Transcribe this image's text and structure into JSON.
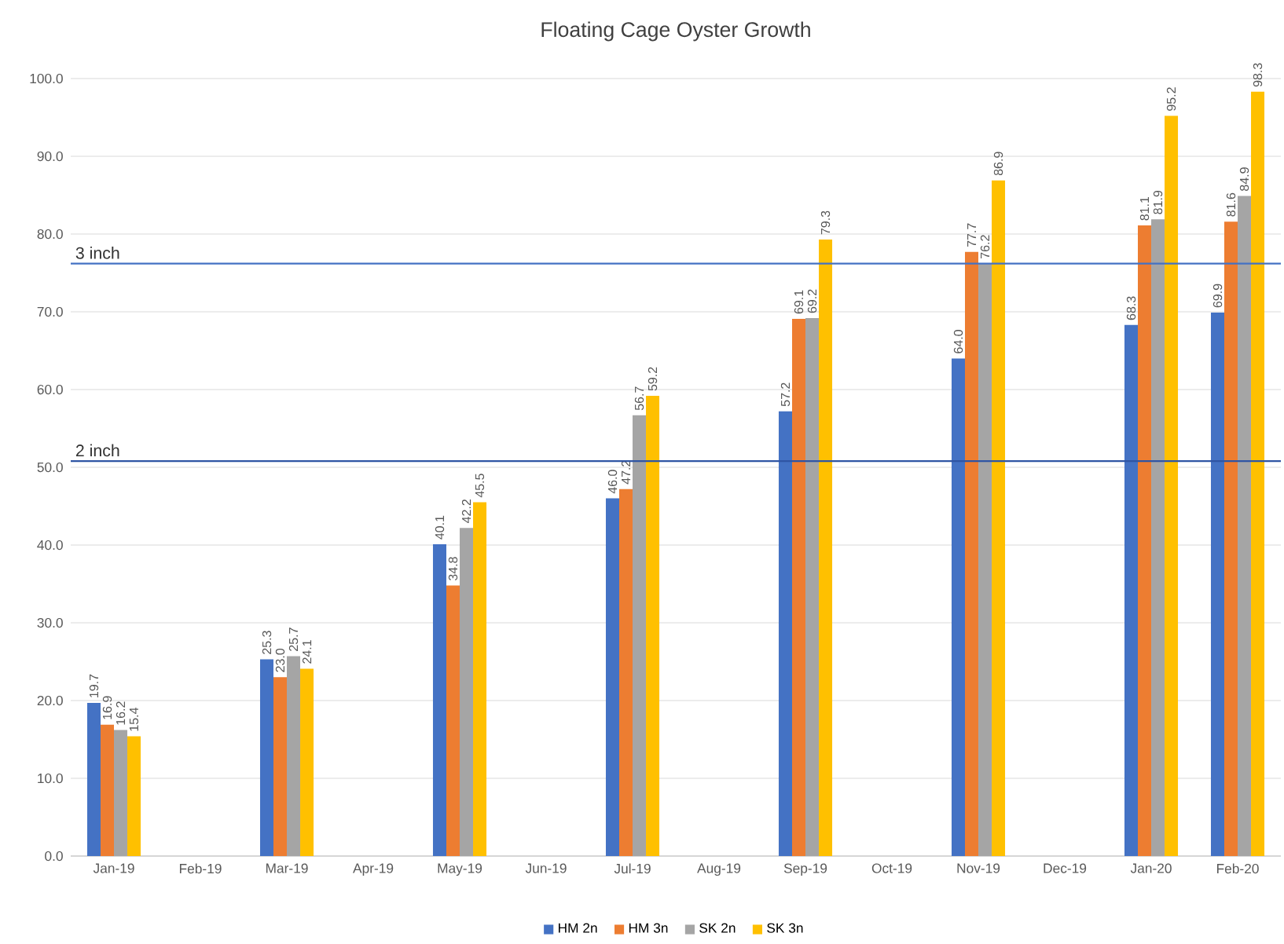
{
  "chart_data": {
    "type": "bar",
    "title": "Floating Cage Oyster Growth",
    "categories": [
      "Jan-19",
      "Feb-19",
      "Mar-19",
      "Apr-19",
      "May-19",
      "Jun-19",
      "Jul-19",
      "Aug-19",
      "Sep-19",
      "Oct-19",
      "Nov-19",
      "Dec-19",
      "Jan-20",
      "Feb-20"
    ],
    "series": [
      {
        "name": "HM 2n",
        "color": "#4472c4",
        "values": [
          19.7,
          null,
          25.3,
          null,
          40.1,
          null,
          46.0,
          null,
          57.2,
          null,
          64.0,
          null,
          68.3,
          69.9
        ],
        "value_labels": [
          "19.7",
          null,
          "25.3",
          null,
          "40.1",
          null,
          "46.0",
          null,
          "57.2",
          null,
          "64.0",
          null,
          "68.3",
          "69.9"
        ]
      },
      {
        "name": "HM 3n",
        "color": "#ed7d31",
        "values": [
          16.9,
          null,
          23.0,
          null,
          34.8,
          null,
          47.2,
          null,
          69.1,
          null,
          77.7,
          null,
          81.1,
          81.6
        ],
        "value_labels": [
          "16.9",
          null,
          "23.0",
          null,
          "34.8",
          null,
          "47.2",
          null,
          "69.1",
          null,
          "77.7",
          null,
          "81.1",
          "81.6"
        ]
      },
      {
        "name": "SK 2n",
        "color": "#a5a5a5",
        "values": [
          16.2,
          null,
          25.7,
          null,
          42.2,
          null,
          56.7,
          null,
          69.2,
          null,
          76.2,
          null,
          81.9,
          84.9
        ],
        "value_labels": [
          "16.2",
          null,
          "25.7",
          null,
          "42.2",
          null,
          "56.7",
          null,
          "69.2",
          null,
          "76.2",
          null,
          "81.9",
          "84.9"
        ]
      },
      {
        "name": "SK 3n",
        "color": "#ffc000",
        "values": [
          15.4,
          null,
          24.1,
          null,
          45.5,
          null,
          59.2,
          null,
          79.3,
          null,
          86.9,
          null,
          95.2,
          98.3
        ],
        "value_labels": [
          "15.4",
          null,
          "24.1",
          null,
          "45.5",
          null,
          "59.2",
          null,
          "79.3",
          null,
          "86.9",
          null,
          "95.2",
          "98.3"
        ]
      }
    ],
    "ylim": [
      0,
      100
    ],
    "yticks": [
      {
        "value": 0,
        "label": "0.0"
      },
      {
        "value": 10,
        "label": "10.0"
      },
      {
        "value": 20,
        "label": "20.0"
      },
      {
        "value": 30,
        "label": "30.0"
      },
      {
        "value": 40,
        "label": "40.0"
      },
      {
        "value": 50,
        "label": "50.0"
      },
      {
        "value": 60,
        "label": "60.0"
      },
      {
        "value": 70,
        "label": "70.0"
      },
      {
        "value": 80,
        "label": "80.0"
      },
      {
        "value": 90,
        "label": "90.0"
      },
      {
        "value": 100,
        "label": "100.0"
      }
    ],
    "ref_lines": [
      {
        "axis": "y",
        "value": 76.2,
        "label": "3 inch",
        "color": "#4472c4"
      },
      {
        "axis": "y",
        "value": 50.8,
        "label": "2 inch",
        "color": "#2f55a4"
      }
    ],
    "grid": "y",
    "legend": "bottom"
  }
}
